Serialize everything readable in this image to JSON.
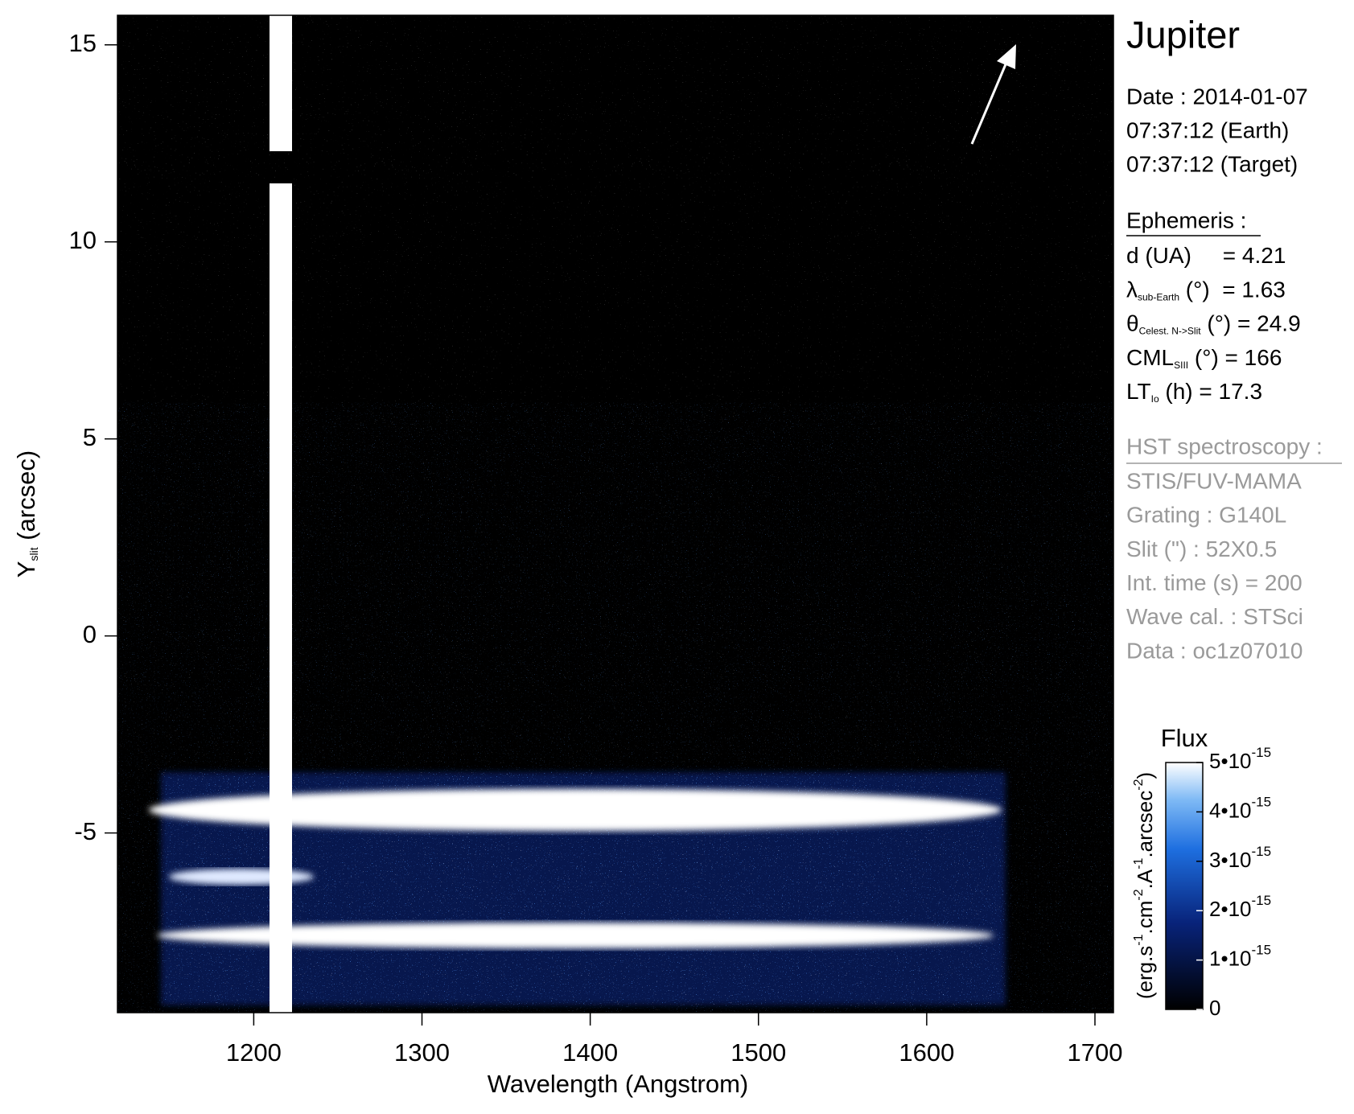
{
  "chart_data": {
    "type": "heatmap",
    "xlabel": "Wavelength (Angstrom)",
    "ylabel": {
      "main": "Y",
      "sub": "slit",
      "rest": " (arcsec)"
    },
    "xlim": [
      1119,
      1711
    ],
    "ylim": [
      -9.56,
      15.75
    ],
    "xticks": [
      1200,
      1300,
      1400,
      1500,
      1600,
      1700
    ],
    "yticks": [
      -5,
      0,
      5,
      10,
      15
    ],
    "colorbar": {
      "title": "Flux",
      "units": [
        [
          "(erg.s",
          "-1"
        ],
        [
          ".cm",
          "-2"
        ],
        [
          ".A",
          "-1"
        ],
        [
          ".arcsec",
          "-2"
        ],
        [
          ")"
        ]
      ],
      "clim": [
        0,
        5e-15
      ],
      "ticks": [
        0,
        {
          "value": 1e-15,
          "label": "1•10",
          "exponent": "-15"
        },
        {
          "value": 2e-15,
          "label": "2•10",
          "exponent": "-15"
        },
        {
          "value": 3e-15,
          "label": "3•10",
          "exponent": "-15"
        },
        {
          "value": 4e-15,
          "label": "4•10",
          "exponent": "-15"
        },
        {
          "value": 5e-15,
          "label": "5•10",
          "exponent": "-15"
        }
      ]
    }
  },
  "info": {
    "target": "Jupiter",
    "date": [
      "Date : 2014-01-07",
      "07:37:12 (Earth)",
      "07:37:12 (Target)"
    ],
    "ephemeris_title": "Ephemeris :",
    "ephemeris": [
      {
        "symbol": "d (UA)",
        "rest": "     = 4.21"
      },
      {
        "symbol": "λ",
        "sub": "sub-Earth",
        "rest": " (°)  = 1.63"
      },
      {
        "symbol": "θ",
        "sub": "Celest. N->Slit",
        "rest": " (°) = 24.9"
      },
      {
        "symbol": "CML",
        "sub": "SIII",
        "rest": " (°) = 166"
      },
      {
        "symbol": "LT",
        "sub": "Io",
        "rest": " (h) = 17.3"
      }
    ],
    "hst_title": "HST spectroscopy :",
    "hst": [
      "STIS/FUV-MAMA",
      "Grating : G140L",
      "Slit (\") : 52X0.5",
      "Int. time (s) = 200",
      "Wave cal. : STSci",
      "Data : oc1z07010"
    ]
  }
}
